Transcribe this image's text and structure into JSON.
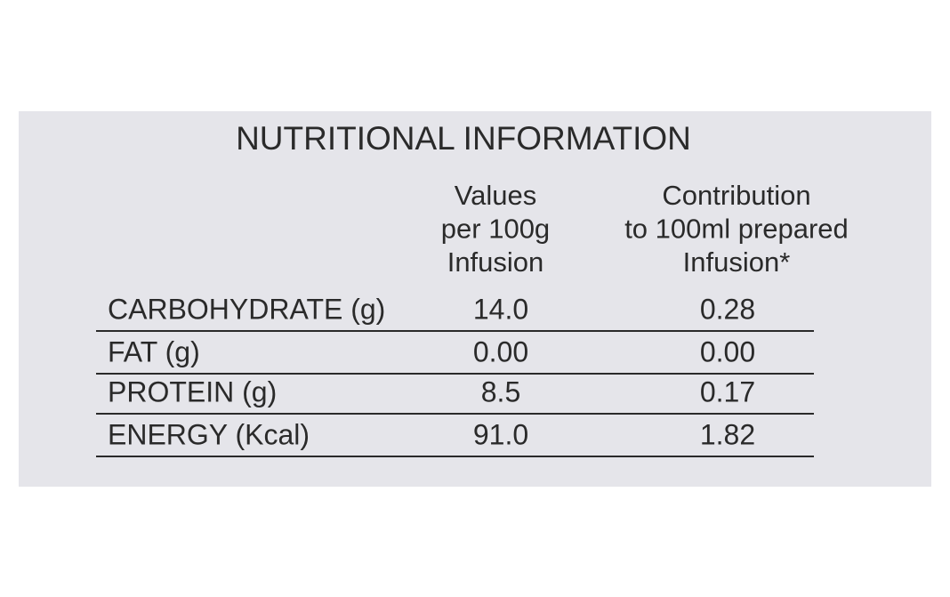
{
  "title": "NUTRITIONAL INFORMATION",
  "table": {
    "headers": [
      [
        "Values",
        "per 100g",
        "Infusion"
      ],
      [
        "Contribution",
        "to 100ml prepared",
        "Infusion*"
      ]
    ],
    "rows": [
      [
        "CARBOHYDRATE (g)",
        "14.0",
        "0.28"
      ],
      [
        "FAT (g)",
        "0.00",
        "0.00"
      ],
      [
        "PROTEIN (g)",
        "8.5",
        "0.17"
      ],
      [
        "ENERGY (Kcal)",
        "91.0",
        "1.82"
      ]
    ]
  }
}
